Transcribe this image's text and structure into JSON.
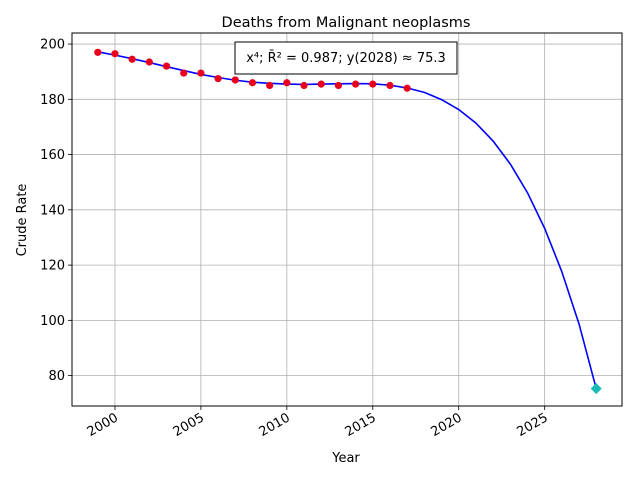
{
  "chart_data": {
    "type": "scatter",
    "title": "Deaths from Malignant neoplasms",
    "xlabel": "Year",
    "ylabel": "Crude Rate",
    "xlim": [
      1997.5,
      2029.5
    ],
    "ylim": [
      69,
      204
    ],
    "x_ticks": [
      2000,
      2005,
      2010,
      2015,
      2020,
      2025
    ],
    "y_ticks": [
      80,
      100,
      120,
      140,
      160,
      180,
      200
    ],
    "grid": true,
    "annotation": "x⁴; R̄² = 0.987; y(2028) ≈ 75.3",
    "series": [
      {
        "kind": "points",
        "color": "#e8001c",
        "x": [
          1999,
          2000,
          2001,
          2002,
          2003,
          2004,
          2005,
          2006,
          2007,
          2008,
          2009,
          2010,
          2011,
          2012,
          2013,
          2014,
          2015,
          2016,
          2017
        ],
        "y": [
          197.0,
          196.5,
          194.5,
          193.5,
          192.0,
          189.5,
          189.5,
          187.5,
          187.0,
          186.0,
          185.0,
          186.0,
          185.0,
          185.5,
          185.0,
          185.5,
          185.5,
          185.0,
          184.0
        ]
      },
      {
        "kind": "fit",
        "color": "#0000ff",
        "x": [
          1999,
          2000,
          2001,
          2002,
          2003,
          2004,
          2005,
          2006,
          2007,
          2008,
          2009,
          2010,
          2011,
          2012,
          2013,
          2014,
          2015,
          2016,
          2017,
          2018,
          2019,
          2020,
          2021,
          2022,
          2023,
          2024,
          2025,
          2026,
          2027,
          2028
        ],
        "y": [
          197.2,
          196.0,
          194.7,
          193.3,
          191.8,
          190.4,
          189.0,
          187.9,
          186.9,
          186.2,
          185.8,
          185.5,
          185.4,
          185.5,
          185.6,
          185.7,
          185.6,
          185.1,
          184.1,
          182.5,
          179.9,
          176.3,
          171.4,
          164.9,
          156.6,
          146.2,
          133.3,
          117.6,
          98.7,
          75.3
        ]
      },
      {
        "kind": "prediction",
        "color": "#1ab9b9",
        "x": [
          2028
        ],
        "y": [
          75.3
        ]
      }
    ]
  }
}
